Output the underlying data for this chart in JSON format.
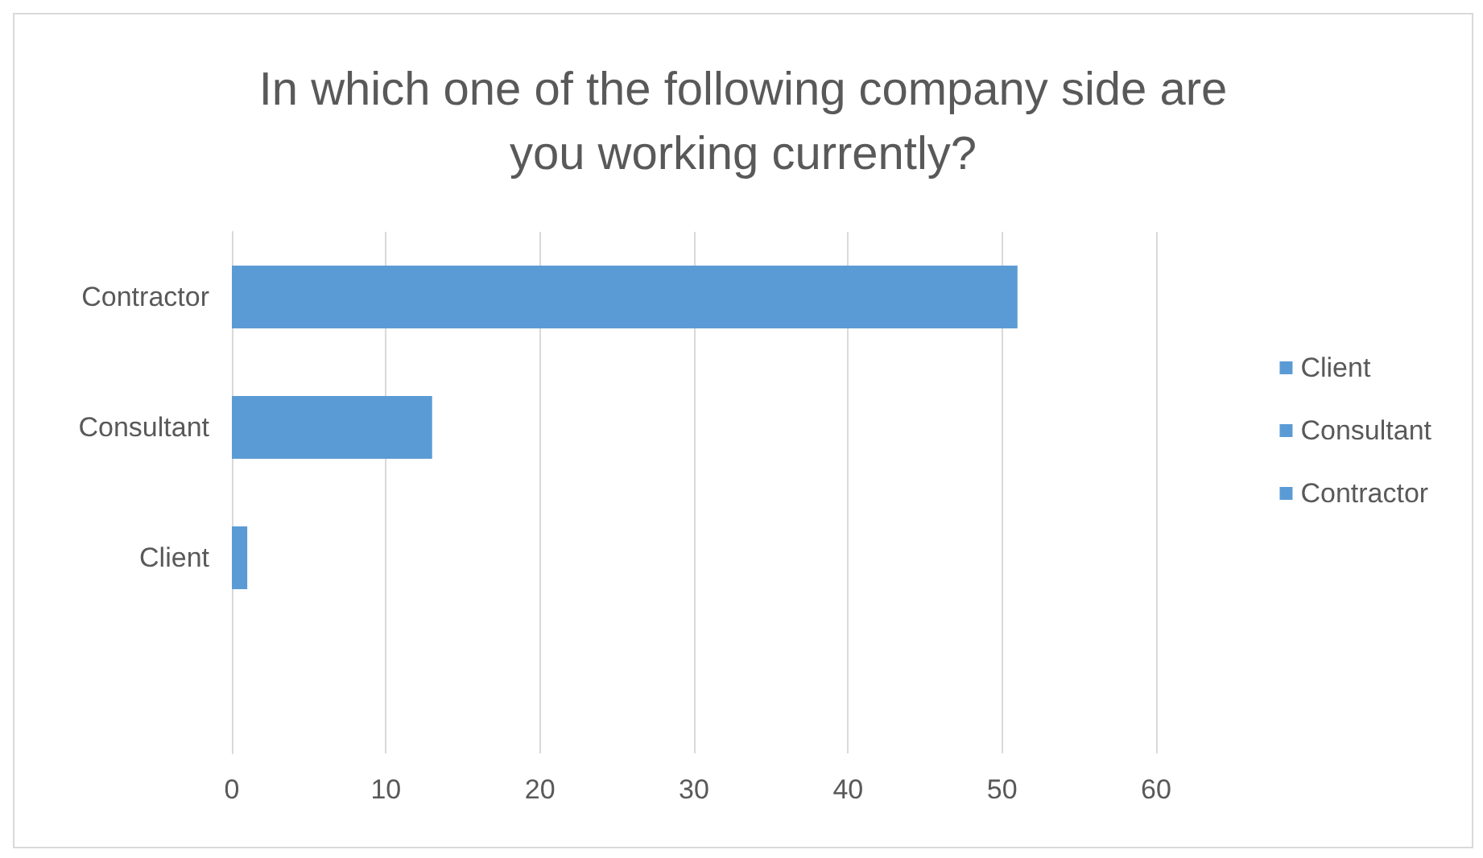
{
  "chart_data": {
    "type": "bar",
    "title": "In which one of the following company side are\nyou working currently?",
    "orientation": "horizontal",
    "stacked": true,
    "categories": [
      "Contractor",
      "Consultant",
      "Client",
      null
    ],
    "series": [
      {
        "name": "Client",
        "color": "#5b9bd5",
        "values": [
          null,
          null,
          1,
          null
        ]
      },
      {
        "name": "Consultant",
        "color": "#5b9bd5",
        "values": [
          null,
          13,
          null,
          null
        ]
      },
      {
        "name": "Contractor",
        "color": "#5b9bd5",
        "values": [
          51,
          null,
          null,
          null
        ]
      }
    ],
    "xlim": [
      0,
      60
    ],
    "xticks": [
      0,
      10,
      20,
      30,
      40,
      50,
      60
    ],
    "grid": "x",
    "legend": "right"
  }
}
